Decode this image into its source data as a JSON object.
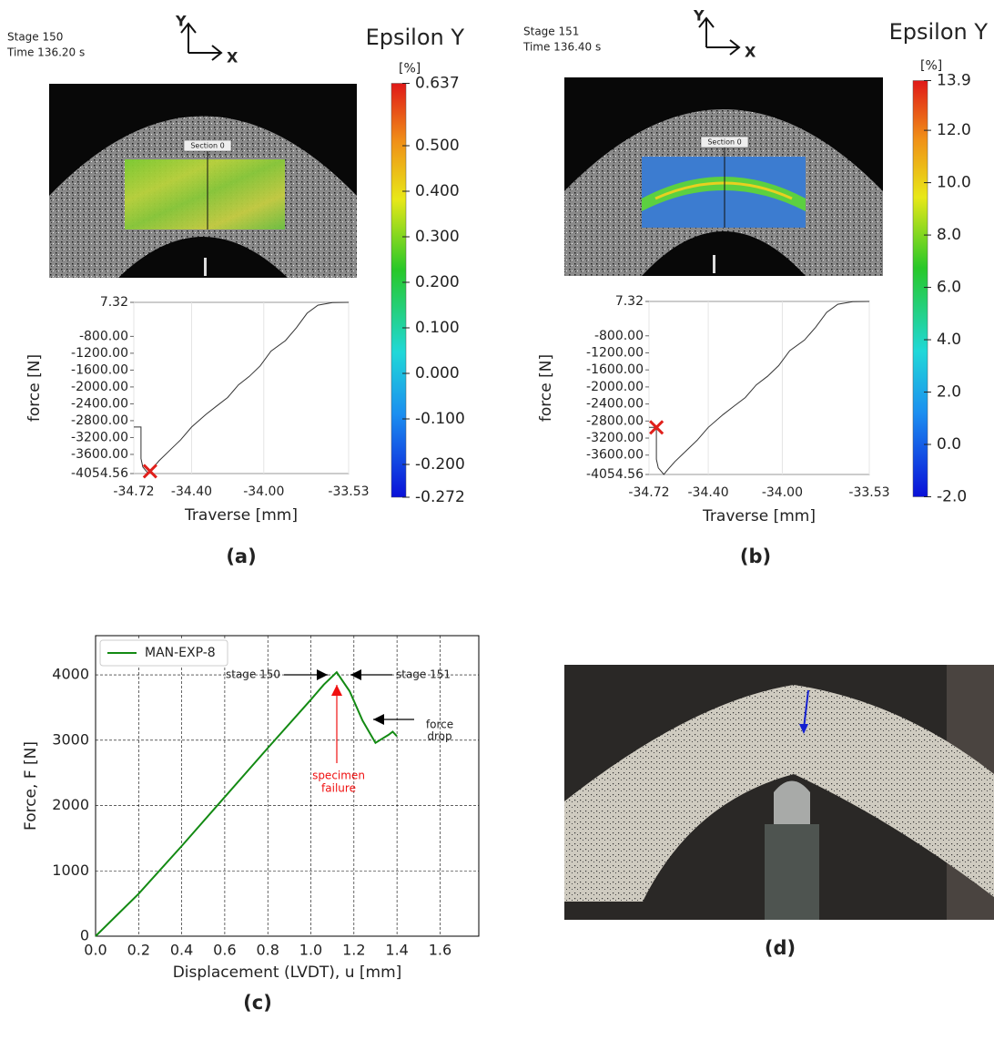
{
  "chart_data": [
    {
      "type": "line",
      "caption": "(a)",
      "stage": "Stage 150",
      "time": "Time 136.20 s",
      "axis_y_name": "Y",
      "axis_x_name": "X",
      "field": "Epsilon Y",
      "section": "Section 0",
      "colorbar": {
        "unit": "[%]",
        "lim": [
          -0.272,
          0.637
        ],
        "ticks": [
          0.637,
          {
            "value": 0.5,
            "label": "0.500"
          },
          {
            "value": 0.4,
            "label": "0.400"
          },
          {
            "value": 0.3,
            "label": "0.300"
          },
          {
            "value": 0.2,
            "label": "0.200"
          },
          {
            "value": 0.1,
            "label": "0.100"
          },
          {
            "value": 0,
            "label": "0.000"
          },
          {
            "value": -0.1,
            "label": "-0.100"
          },
          {
            "value": -0.2,
            "label": "-0.200"
          },
          -0.272
        ]
      },
      "xlabel": "Traverse [mm]",
      "ylabel": "force [N]",
      "xlim": [
        -34.72,
        -33.53
      ],
      "xticks": [
        -34.72,
        {
          "value": -34.4,
          "label": "-34.40"
        },
        {
          "value": -34.0,
          "label": "-34.00"
        },
        -33.53
      ],
      "ylim": [
        -4054.56,
        7.32
      ],
      "yticks": [
        7.32,
        {
          "value": -800,
          "label": "-800.00"
        },
        {
          "value": -1200,
          "label": "-1200.00"
        },
        {
          "value": -1600,
          "label": "-1600.00"
        },
        {
          "value": -2000,
          "label": "-2000.00"
        },
        {
          "value": -2400,
          "label": "-2400.00"
        },
        {
          "value": -2800,
          "label": "-2800.00"
        },
        {
          "value": -3200,
          "label": "-3200.00"
        },
        {
          "value": -3600,
          "label": "-3600.00"
        },
        -4054.56
      ],
      "x": [
        -33.53,
        -33.62,
        -33.7,
        -33.76,
        -33.82,
        -33.88,
        -33.96,
        -34.02,
        -34.08,
        -34.14,
        -34.2,
        -34.26,
        -34.32,
        -34.4,
        -34.46,
        -34.52,
        -34.58,
        -34.62,
        -34.64,
        -34.67,
        -34.68,
        -34.68,
        -34.72
      ],
      "series": [
        {
          "color": "#333333",
          "values": [
            7.32,
            0,
            -60,
            -250,
            -600,
            -900,
            -1150,
            -1500,
            -1750,
            -1950,
            -2250,
            -2450,
            -2650,
            -2950,
            -3250,
            -3500,
            -3750,
            -3950,
            -4054.56,
            -3900,
            -3700,
            -2950,
            -2950
          ]
        }
      ],
      "marker": {
        "x": -34.63,
        "y": -4000,
        "color": "#e0201b"
      }
    },
    {
      "type": "line",
      "caption": "(b)",
      "stage": "Stage 151",
      "time": "Time 136.40 s",
      "axis_y_name": "Y",
      "axis_x_name": "X",
      "field": "Epsilon Y",
      "section": "Section 0",
      "colorbar": {
        "unit": "[%]",
        "lim": [
          -2.0,
          13.9
        ],
        "ticks": [
          13.9,
          {
            "value": 12,
            "label": "12.0"
          },
          {
            "value": 10,
            "label": "10.0"
          },
          {
            "value": 8,
            "label": "8.0"
          },
          {
            "value": 6,
            "label": "6.0"
          },
          {
            "value": 4,
            "label": "4.0"
          },
          {
            "value": 2,
            "label": "2.0"
          },
          {
            "value": 0,
            "label": "0.0"
          },
          {
            "value": -2,
            "label": "-2.0"
          }
        ]
      },
      "xlabel": "Traverse [mm]",
      "ylabel": "force [N]",
      "xlim": [
        -34.72,
        -33.53
      ],
      "xticks": [
        -34.72,
        {
          "value": -34.4,
          "label": "-34.40"
        },
        {
          "value": -34.0,
          "label": "-34.00"
        },
        -33.53
      ],
      "ylim": [
        -4054.56,
        7.32
      ],
      "yticks": [
        7.32,
        {
          "value": -800,
          "label": "-800.00"
        },
        {
          "value": -1200,
          "label": "-1200.00"
        },
        {
          "value": -1600,
          "label": "-1600.00"
        },
        {
          "value": -2000,
          "label": "-2000.00"
        },
        {
          "value": -2400,
          "label": "-2400.00"
        },
        {
          "value": -2800,
          "label": "-2800.00"
        },
        {
          "value": -3200,
          "label": "-3200.00"
        },
        {
          "value": -3600,
          "label": "-3600.00"
        },
        -4054.56
      ],
      "x": [
        -33.53,
        -33.62,
        -33.7,
        -33.76,
        -33.82,
        -33.88,
        -33.96,
        -34.02,
        -34.08,
        -34.14,
        -34.2,
        -34.26,
        -34.32,
        -34.4,
        -34.46,
        -34.52,
        -34.58,
        -34.62,
        -34.64,
        -34.67,
        -34.68,
        -34.68,
        -34.72
      ],
      "series": [
        {
          "color": "#333333",
          "values": [
            7.32,
            0,
            -60,
            -250,
            -600,
            -900,
            -1150,
            -1500,
            -1750,
            -1950,
            -2250,
            -2450,
            -2650,
            -2950,
            -3250,
            -3500,
            -3750,
            -3950,
            -4054.56,
            -3900,
            -3700,
            -2950,
            -2950
          ]
        }
      ],
      "marker": {
        "x": -34.68,
        "y": -2950,
        "color": "#e0201b"
      }
    },
    {
      "type": "line",
      "caption": "(c)",
      "xlabel": "Displacement (LVDT), u [mm]",
      "ylabel": "Force, F [N]",
      "xlim": [
        0,
        1.78
      ],
      "xticks": [
        {
          "value": 0,
          "label": "0.0"
        },
        0.2,
        0.4,
        0.6,
        0.8,
        {
          "value": 1,
          "label": "1.0"
        },
        1.2,
        1.4,
        1.6
      ],
      "ylim": [
        0,
        4600
      ],
      "yticks": [
        0,
        1000,
        2000,
        3000,
        4000
      ],
      "grid": true,
      "legend": "upper left",
      "x": [
        0,
        0.2,
        0.4,
        0.6,
        0.8,
        1.0,
        1.06,
        1.12,
        1.18,
        1.24,
        1.3,
        1.33,
        1.36,
        1.38,
        1.4
      ],
      "series": [
        {
          "name": "MAN-EXP-8",
          "color": "#138a13",
          "values": [
            0,
            650,
            1380,
            2130,
            2880,
            3620,
            3850,
            4040,
            3750,
            3300,
            2960,
            3020,
            3080,
            3130,
            3060
          ]
        }
      ],
      "annotations": {
        "stage_150": "stage 150",
        "stage_151": "stage 151",
        "failure": [
          "specimen",
          "failure"
        ],
        "drop": [
          "force",
          "drop"
        ]
      }
    }
  ],
  "panel_d": {
    "caption": "(d)"
  }
}
